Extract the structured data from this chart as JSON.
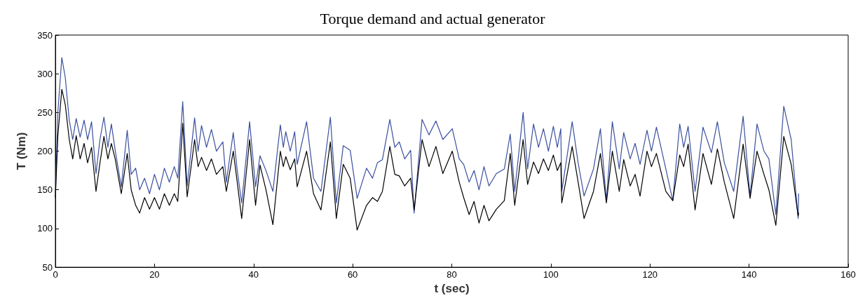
{
  "chart_data": {
    "type": "line",
    "title": "Torque demand and actual generator",
    "xlabel": "t (sec)",
    "ylabel": "T (Nm)",
    "xlim": [
      0,
      160
    ],
    "xticks": [
      0,
      20,
      40,
      60,
      80,
      100,
      120,
      140,
      160
    ],
    "ylim": [
      50,
      350
    ],
    "yticks": [
      50,
      100,
      150,
      200,
      250,
      300,
      350
    ],
    "marker": "none",
    "line_style": "solid",
    "x": [
      0,
      0.5,
      1.3,
      2,
      2.8,
      3.5,
      4.2,
      5,
      5.8,
      6.5,
      7.3,
      8.2,
      9,
      9.8,
      10.6,
      11.3,
      12.1,
      13.3,
      14.5,
      15.3,
      16.2,
      17,
      18,
      19,
      20,
      21,
      22,
      23,
      24,
      24.7,
      25.7,
      26.6,
      28.1,
      28.8,
      29.5,
      30.5,
      31.5,
      32.5,
      33.8,
      34.5,
      35.9,
      36.7,
      37.6,
      39.2,
      40.4,
      41.3,
      42.5,
      43.9,
      45.4,
      46,
      46.5,
      47.4,
      48.3,
      48.8,
      50.7,
      52.1,
      53.6,
      55.5,
      56.7,
      58.1,
      59.5,
      60.9,
      62.8,
      64,
      65,
      66,
      67.5,
      68.5,
      69.4,
      70.5,
      71.7,
      72.4,
      74,
      75.4,
      76.8,
      78.2,
      80.1,
      81.5,
      82.4,
      83.5,
      84.5,
      85.5,
      86.5,
      87.5,
      89,
      90.6,
      91.8,
      92.7,
      94.4,
      95.3,
      96.5,
      97.5,
      98.5,
      99.5,
      100.5,
      101.3,
      102,
      102.2,
      104.3,
      105.5,
      106.7,
      108.6,
      110,
      111.2,
      112.4,
      113.8,
      114.7,
      116,
      117,
      118,
      119.4,
      120.3,
      121.3,
      123.2,
      124.6,
      126,
      126.8,
      127.7,
      129.1,
      130.7,
      132.4,
      133.6,
      135,
      136.9,
      138.8,
      140.2,
      141.6,
      143,
      144,
      145.4,
      147,
      148.5,
      149.9,
      150
    ],
    "series": [
      {
        "color": "#3a4fa0",
        "values": [
          140,
          250,
          321,
          295,
          240,
          215,
          242,
          218,
          240,
          215,
          238,
          171,
          215,
          244,
          205,
          235,
          200,
          154,
          227,
          170,
          178,
          150,
          165,
          145,
          170,
          150,
          178,
          160,
          180,
          165,
          264,
          155,
          243,
          200,
          233,
          205,
          228,
          200,
          212,
          160,
          224,
          175,
          133,
          238,
          154,
          194,
          175,
          148,
          234,
          205,
          225,
          200,
          225,
          183,
          238,
          165,
          148,
          244,
          133,
          207,
          201,
          139,
          178,
          165,
          185,
          189,
          241,
          205,
          212,
          190,
          201,
          120,
          241,
          221,
          239,
          215,
          229,
          190,
          183,
          160,
          175,
          150,
          180,
          155,
          171,
          177,
          222,
          148,
          250,
          177,
          235,
          205,
          229,
          200,
          232,
          205,
          229,
          148,
          238,
          185,
          142,
          177,
          229,
          136,
          238,
          177,
          224,
          190,
          210,
          183,
          227,
          200,
          231,
          177,
          136,
          235,
          205,
          232,
          148,
          231,
          198,
          238,
          185,
          148,
          245,
          142,
          235,
          200,
          190,
          118,
          258,
          215,
          113,
          145
        ]
      },
      {
        "color": "#000000",
        "values": [
          140,
          220,
          280,
          260,
          215,
          190,
          220,
          190,
          210,
          185,
          205,
          148,
          185,
          219,
          190,
          210,
          189,
          145,
          197,
          150,
          130,
          120,
          140,
          125,
          140,
          125,
          145,
          130,
          145,
          135,
          236,
          141,
          215,
          180,
          192,
          175,
          190,
          170,
          180,
          148,
          200,
          160,
          113,
          215,
          130,
          182,
          150,
          105,
          200,
          180,
          193,
          176,
          190,
          154,
          200,
          145,
          124,
          212,
          113,
          183,
          165,
          98,
          130,
          140,
          135,
          148,
          206,
          170,
          168,
          155,
          165,
          124,
          215,
          180,
          206,
          171,
          200,
          160,
          140,
          118,
          135,
          107,
          130,
          110,
          125,
          136,
          197,
          130,
          215,
          157,
          186,
          171,
          190,
          175,
          195,
          175,
          185,
          133,
          206,
          160,
          113,
          148,
          197,
          133,
          200,
          148,
          189,
          155,
          170,
          142,
          200,
          180,
          197,
          148,
          136,
          195,
          180,
          209,
          124,
          197,
          157,
          203,
          160,
          113,
          209,
          139,
          200,
          170,
          150,
          104,
          219,
          183,
          116,
          120
        ]
      }
    ]
  }
}
